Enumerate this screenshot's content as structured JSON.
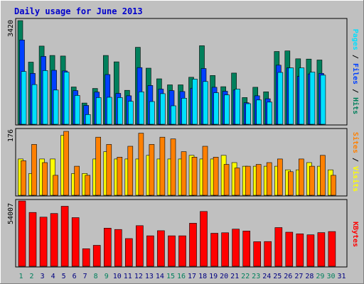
{
  "title": "Daily usage for June 2013",
  "colors": {
    "background": "#c0c0c0",
    "hits": "#00805c",
    "files": "#0040ff",
    "pages": "#00e0ff",
    "visits": "#ffff00",
    "sites": "#ff8000",
    "kbytes": "#ff0000",
    "title": "#0000cc",
    "weekend_day": "#00805c",
    "weekday": "#000080",
    "slash": "#000000"
  },
  "chart_data": [
    {
      "type": "bar",
      "panel": "top",
      "ymax_label": "3420",
      "ylim": [
        0,
        3420
      ],
      "categories": [
        "1",
        "2",
        "3",
        "4",
        "5",
        "6",
        "7",
        "8",
        "9",
        "10",
        "11",
        "12",
        "13",
        "14",
        "15",
        "16",
        "17",
        "18",
        "19",
        "20",
        "21",
        "22",
        "23",
        "24",
        "25",
        "26",
        "27",
        "28",
        "29",
        "30",
        "31"
      ],
      "series": [
        {
          "name": "Hits",
          "values": [
            3420,
            2050,
            2580,
            2270,
            2250,
            1230,
            700,
            1180,
            2270,
            2060,
            1120,
            2540,
            1850,
            1500,
            1300,
            1300,
            1550,
            2590,
            1610,
            1240,
            1690,
            880,
            1220,
            1070,
            2400,
            2420,
            2160,
            2150,
            2120,
            0,
            0
          ]
        },
        {
          "name": "Files",
          "values": [
            2780,
            1680,
            2240,
            1780,
            1760,
            1110,
            620,
            1060,
            1640,
            1020,
            940,
            1870,
            1280,
            1160,
            1110,
            1080,
            1190,
            1840,
            1220,
            1090,
            1130,
            710,
            940,
            840,
            1950,
            1860,
            1580,
            1660,
            1680,
            0,
            0
          ]
        },
        {
          "name": "Pages",
          "values": [
            1740,
            1310,
            1770,
            1130,
            1720,
            950,
            320,
            880,
            890,
            880,
            760,
            1070,
            750,
            1010,
            610,
            860,
            1490,
            1410,
            1040,
            970,
            1160,
            680,
            800,
            730,
            1710,
            1860,
            1860,
            1720,
            1620,
            0,
            0
          ]
        }
      ]
    },
    {
      "type": "bar",
      "panel": "middle",
      "ymax_label": "176",
      "ylim": [
        0,
        176
      ],
      "categories": [
        "1",
        "2",
        "3",
        "4",
        "5",
        "6",
        "7",
        "8",
        "9",
        "10",
        "11",
        "12",
        "13",
        "14",
        "15",
        "16",
        "17",
        "18",
        "19",
        "20",
        "21",
        "22",
        "23",
        "24",
        "25",
        "26",
        "27",
        "28",
        "29",
        "30",
        "31"
      ],
      "series": [
        {
          "name": "Visits",
          "values": [
            100,
            60,
            100,
            100,
            165,
            60,
            60,
            100,
            120,
            100,
            100,
            100,
            110,
            100,
            100,
            100,
            110,
            100,
            100,
            110,
            90,
            80,
            80,
            80,
            80,
            70,
            70,
            90,
            80,
            70,
            0
          ]
        },
        {
          "name": "Sites",
          "values": [
            95,
            140,
            90,
            55,
            176,
            80,
            55,
            160,
            140,
            105,
            135,
            171,
            140,
            160,
            155,
            120,
            105,
            135,
            105,
            85,
            75,
            80,
            85,
            90,
            100,
            65,
            100,
            80,
            110,
            55,
            0
          ]
        }
      ]
    },
    {
      "type": "bar",
      "panel": "bottom",
      "ymax_label": "54007",
      "ylim": [
        0,
        54007
      ],
      "categories": [
        "1",
        "2",
        "3",
        "4",
        "5",
        "6",
        "7",
        "8",
        "9",
        "10",
        "11",
        "12",
        "13",
        "14",
        "15",
        "16",
        "17",
        "18",
        "19",
        "20",
        "21",
        "22",
        "23",
        "24",
        "25",
        "26",
        "27",
        "28",
        "29",
        "30",
        "31"
      ],
      "series": [
        {
          "name": "KBytes",
          "values": [
            54007,
            44500,
            40600,
            43600,
            49600,
            40200,
            14500,
            17300,
            31500,
            30400,
            22900,
            33600,
            25200,
            29400,
            25200,
            25200,
            35600,
            45300,
            27300,
            27700,
            30700,
            29100,
            20300,
            20400,
            32000,
            28200,
            26800,
            26000,
            27800,
            28700,
            0
          ]
        }
      ]
    }
  ],
  "x_labels": [
    {
      "text": "1",
      "weekend": true
    },
    {
      "text": "2",
      "weekend": true
    },
    {
      "text": "3",
      "weekend": false
    },
    {
      "text": "4",
      "weekend": false
    },
    {
      "text": "5",
      "weekend": false
    },
    {
      "text": "6",
      "weekend": false
    },
    {
      "text": "7",
      "weekend": false
    },
    {
      "text": "8",
      "weekend": true
    },
    {
      "text": "9",
      "weekend": true
    },
    {
      "text": "10",
      "weekend": false
    },
    {
      "text": "11",
      "weekend": false
    },
    {
      "text": "12",
      "weekend": false
    },
    {
      "text": "13",
      "weekend": false
    },
    {
      "text": "14",
      "weekend": false
    },
    {
      "text": "15",
      "weekend": true
    },
    {
      "text": "16",
      "weekend": true
    },
    {
      "text": "17",
      "weekend": false
    },
    {
      "text": "18",
      "weekend": false
    },
    {
      "text": "19",
      "weekend": false
    },
    {
      "text": "20",
      "weekend": false
    },
    {
      "text": "21",
      "weekend": false
    },
    {
      "text": "22",
      "weekend": true
    },
    {
      "text": "23",
      "weekend": true
    },
    {
      "text": "24",
      "weekend": false
    },
    {
      "text": "25",
      "weekend": false
    },
    {
      "text": "26",
      "weekend": false
    },
    {
      "text": "27",
      "weekend": false
    },
    {
      "text": "28",
      "weekend": false
    },
    {
      "text": "29",
      "weekend": true
    },
    {
      "text": "30",
      "weekend": true
    },
    {
      "text": "31",
      "weekend": false
    }
  ],
  "legends": {
    "top": [
      {
        "text": "Pages",
        "color_key": "pages"
      },
      {
        "text": " / ",
        "color_key": "slash"
      },
      {
        "text": "Files",
        "color_key": "files"
      },
      {
        "text": " / ",
        "color_key": "slash"
      },
      {
        "text": "Hits",
        "color_key": "hits"
      }
    ],
    "middle": [
      {
        "text": "Sites",
        "color_key": "sites"
      },
      {
        "text": " / ",
        "color_key": "slash"
      },
      {
        "text": "Visits",
        "color_key": "visits"
      }
    ],
    "bottom": [
      {
        "text": "KBytes",
        "color_key": "kbytes"
      }
    ]
  }
}
